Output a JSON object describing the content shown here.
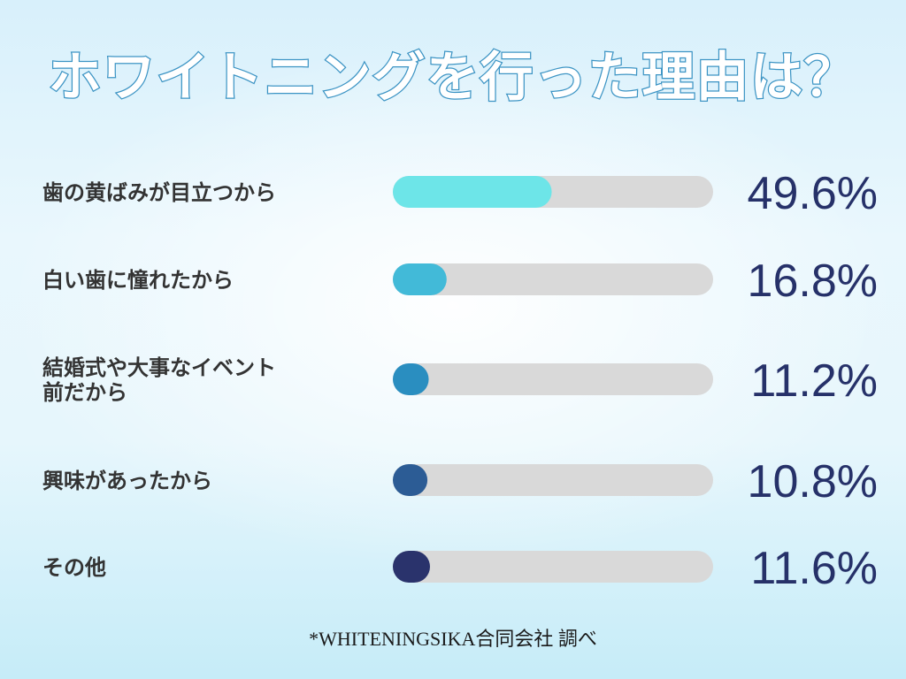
{
  "title": "ホワイトニングを行った理由は？",
  "note": "*WHITENINGSIKA合同会社 調べ",
  "chart_data": {
    "type": "bar",
    "orientation": "horizontal",
    "xlim": [
      0,
      100
    ],
    "grid": false,
    "legend": "none",
    "categories": [
      [
        "歯の黄ばみが目立つから"
      ],
      [
        "白い歯に憧れたから"
      ],
      [
        "結婚式や大事なイベント",
        "前だから"
      ],
      [
        "興味があったから"
      ],
      [
        "その他"
      ]
    ],
    "values": [
      49.6,
      16.8,
      11.2,
      10.8,
      11.6
    ],
    "value_labels": [
      "49.6%",
      "16.8%",
      "11.2%",
      "10.8%",
      "11.6%"
    ],
    "track_color": "#d9d9d9",
    "colors": [
      "#6de5e8",
      "#42bad8",
      "#2a8ec0",
      "#2c5c95",
      "#2a336c"
    ]
  }
}
